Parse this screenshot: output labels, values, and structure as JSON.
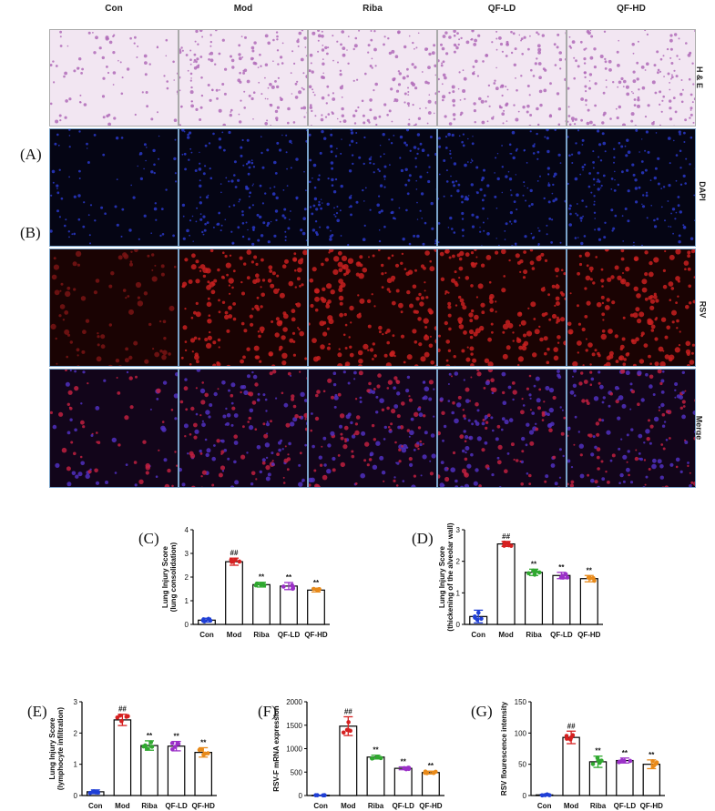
{
  "columns": [
    "Con",
    "Mod",
    "Riba",
    "QF-LD",
    "QF-HD"
  ],
  "rows": [
    "H & E",
    "DAPI",
    "RSV",
    "Merge"
  ],
  "panel_letters": {
    "A": "(A)",
    "B": "(B)"
  },
  "colors": {
    "Con": "#1f3fd6",
    "Mod": "#d62020",
    "Riba": "#2fa82f",
    "QF-LD": "#9b30c8",
    "QF-HD": "#e88a1a"
  },
  "chart_data": [
    {
      "id": "C",
      "letter": "(C)",
      "type": "bar",
      "categories": [
        "Con",
        "Mod",
        "Riba",
        "QF-LD",
        "QF-HD"
      ],
      "values": [
        0.18,
        2.65,
        1.68,
        1.62,
        1.45
      ],
      "errors": [
        0.08,
        0.15,
        0.1,
        0.15,
        0.08
      ],
      "ylabel": "Lung Injury Score (lung consolidation)",
      "ylim": [
        0,
        4
      ],
      "yticks": [
        0,
        1,
        2,
        3,
        4
      ],
      "annotations": [
        "",
        "##",
        "**",
        "**",
        "**"
      ]
    },
    {
      "id": "D",
      "letter": "(D)",
      "type": "bar",
      "categories": [
        "Con",
        "Mod",
        "Riba",
        "QF-LD",
        "QF-HD"
      ],
      "values": [
        0.25,
        2.55,
        1.65,
        1.55,
        1.45
      ],
      "errors": [
        0.2,
        0.08,
        0.1,
        0.1,
        0.1
      ],
      "ylabel": "Lung Injury Score (thickening of the alveolar wall)",
      "ylim": [
        0,
        3
      ],
      "yticks": [
        0,
        1,
        2,
        3
      ],
      "annotations": [
        "",
        "##",
        "**",
        "**",
        "**"
      ]
    },
    {
      "id": "E",
      "letter": "(E)",
      "type": "bar",
      "categories": [
        "Con",
        "Mod",
        "Riba",
        "QF-LD",
        "QF-HD"
      ],
      "values": [
        0.12,
        2.42,
        1.6,
        1.58,
        1.38
      ],
      "errors": [
        0.06,
        0.18,
        0.15,
        0.15,
        0.15
      ],
      "ylabel": "Lung Injury Score (lymphocyte infiltration)",
      "ylim": [
        0,
        3
      ],
      "yticks": [
        0,
        1,
        2,
        3
      ],
      "annotations": [
        "",
        "##",
        "**",
        "**",
        "**"
      ]
    },
    {
      "id": "F",
      "letter": "(F)",
      "type": "bar",
      "categories": [
        "Con",
        "Mod",
        "Riba",
        "QF-LD",
        "QF-HD"
      ],
      "values": [
        5,
        1480,
        820,
        580,
        490
      ],
      "errors": [
        3,
        200,
        40,
        30,
        30
      ],
      "ylabel": "RSV-F mRNA expression",
      "ylim": [
        0,
        2000
      ],
      "yticks": [
        0,
        500,
        1000,
        1500,
        2000
      ],
      "annotations": [
        "",
        "##",
        "**",
        "**",
        "**"
      ]
    },
    {
      "id": "G",
      "letter": "(G)",
      "type": "bar",
      "categories": [
        "Con",
        "Mod",
        "Riba",
        "QF-LD",
        "QF-HD"
      ],
      "values": [
        1,
        93,
        54,
        56,
        50
      ],
      "errors": [
        1,
        10,
        9,
        4,
        7
      ],
      "ylabel": "RSV flourescence intensity",
      "ylim": [
        0,
        150
      ],
      "yticks": [
        0,
        50,
        100,
        150
      ],
      "annotations": [
        "",
        "##",
        "**",
        "**",
        "**"
      ]
    }
  ]
}
